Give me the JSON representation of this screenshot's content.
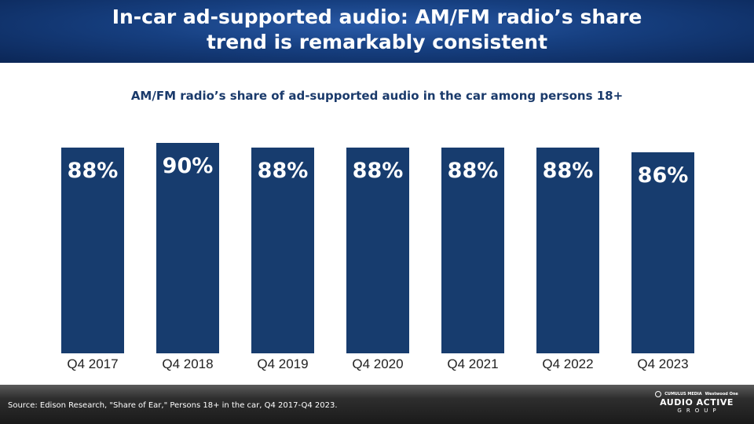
{
  "header": {
    "title_line1": "In-car ad-supported audio: AM/FM radio’s share",
    "title_line2": "trend is remarkably consistent"
  },
  "chart_data": {
    "type": "bar",
    "title": "AM/FM radio’s share of ad-supported audio in the car among persons 18+",
    "categories": [
      "Q4 2017",
      "Q4 2018",
      "Q4 2019",
      "Q4 2020",
      "Q4 2021",
      "Q4 2022",
      "Q4 2023"
    ],
    "values": [
      88,
      90,
      88,
      88,
      88,
      88,
      86
    ],
    "data_labels": [
      "88%",
      "90%",
      "88%",
      "88%",
      "88%",
      "88%",
      "86%"
    ],
    "unit": "%",
    "bar_color": "#173c6e",
    "ylim": [
      0,
      90
    ],
    "grid": false,
    "legend": "none"
  },
  "footer": {
    "source": "Source: Edison Research, \"Share of Ear,\" Persons 18+ in the car, Q4 2017-Q4 2023.",
    "logo": {
      "brand_left": "CUMULUS MEDIA",
      "brand_right": "Westwood One",
      "name": "AUDIO ACTIVE",
      "sub": "GROUP"
    }
  },
  "colors": {
    "header_bg": "#163f80",
    "subtitle": "#1a3a6b",
    "footer_bg": "#2e2e2e"
  }
}
